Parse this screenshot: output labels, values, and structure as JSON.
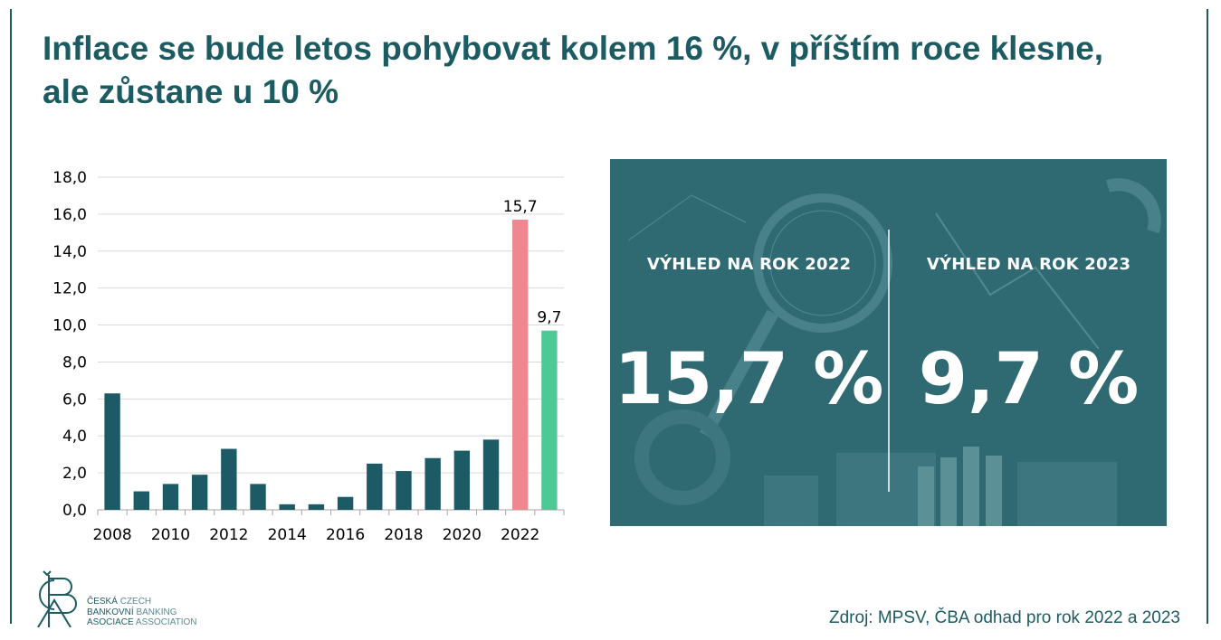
{
  "title": "Inflace se bude letos pohybovat kolem 16 %, v příštím roce klesne, ale zůstane u 10 %",
  "chart_data": {
    "type": "bar",
    "categories": [
      "2008",
      "2009",
      "2010",
      "2011",
      "2012",
      "2013",
      "2014",
      "2015",
      "2016",
      "2017",
      "2018",
      "2019",
      "2020",
      "2021",
      "2022",
      "2023"
    ],
    "values": [
      6.3,
      1.0,
      1.4,
      1.9,
      3.3,
      1.4,
      0.3,
      0.3,
      0.7,
      2.5,
      2.1,
      2.8,
      3.2,
      3.8,
      15.7,
      9.7
    ],
    "x_tick_labels": [
      "2008",
      "2010",
      "2012",
      "2014",
      "2016",
      "2018",
      "2020",
      "2022"
    ],
    "y_ticks": [
      "0,0",
      "2,0",
      "4,0",
      "6,0",
      "8,0",
      "10,0",
      "12,0",
      "14,0",
      "16,0",
      "18,0"
    ],
    "ylim": [
      0,
      18
    ],
    "grid": true,
    "data_labels": [
      {
        "category": "2022",
        "text": "15,7"
      },
      {
        "category": "2023",
        "text": "9,7"
      }
    ],
    "colors": {
      "default": "#1c5a66",
      "2022": "#f08790",
      "2023": "#4ec896"
    }
  },
  "outlook": {
    "left": {
      "heading": "VÝHLED NA ROK 2022",
      "value": "15,7 %"
    },
    "right": {
      "heading": "VÝHLED NA ROK 2023",
      "value": "9,7 %"
    }
  },
  "source": "Zdroj: MPSV, ČBA odhad pro rok 2022 a 2023",
  "logo": {
    "mark": "ČBA",
    "lines": [
      {
        "cz": "ČESKÁ",
        "en": "CZECH"
      },
      {
        "cz": "BANKOVNÍ",
        "en": "BANKING"
      },
      {
        "cz": "ASOCIACE",
        "en": "ASSOCIATION"
      }
    ]
  },
  "palette": {
    "brand": "#1d5b63",
    "panel": "#2f6a73"
  }
}
